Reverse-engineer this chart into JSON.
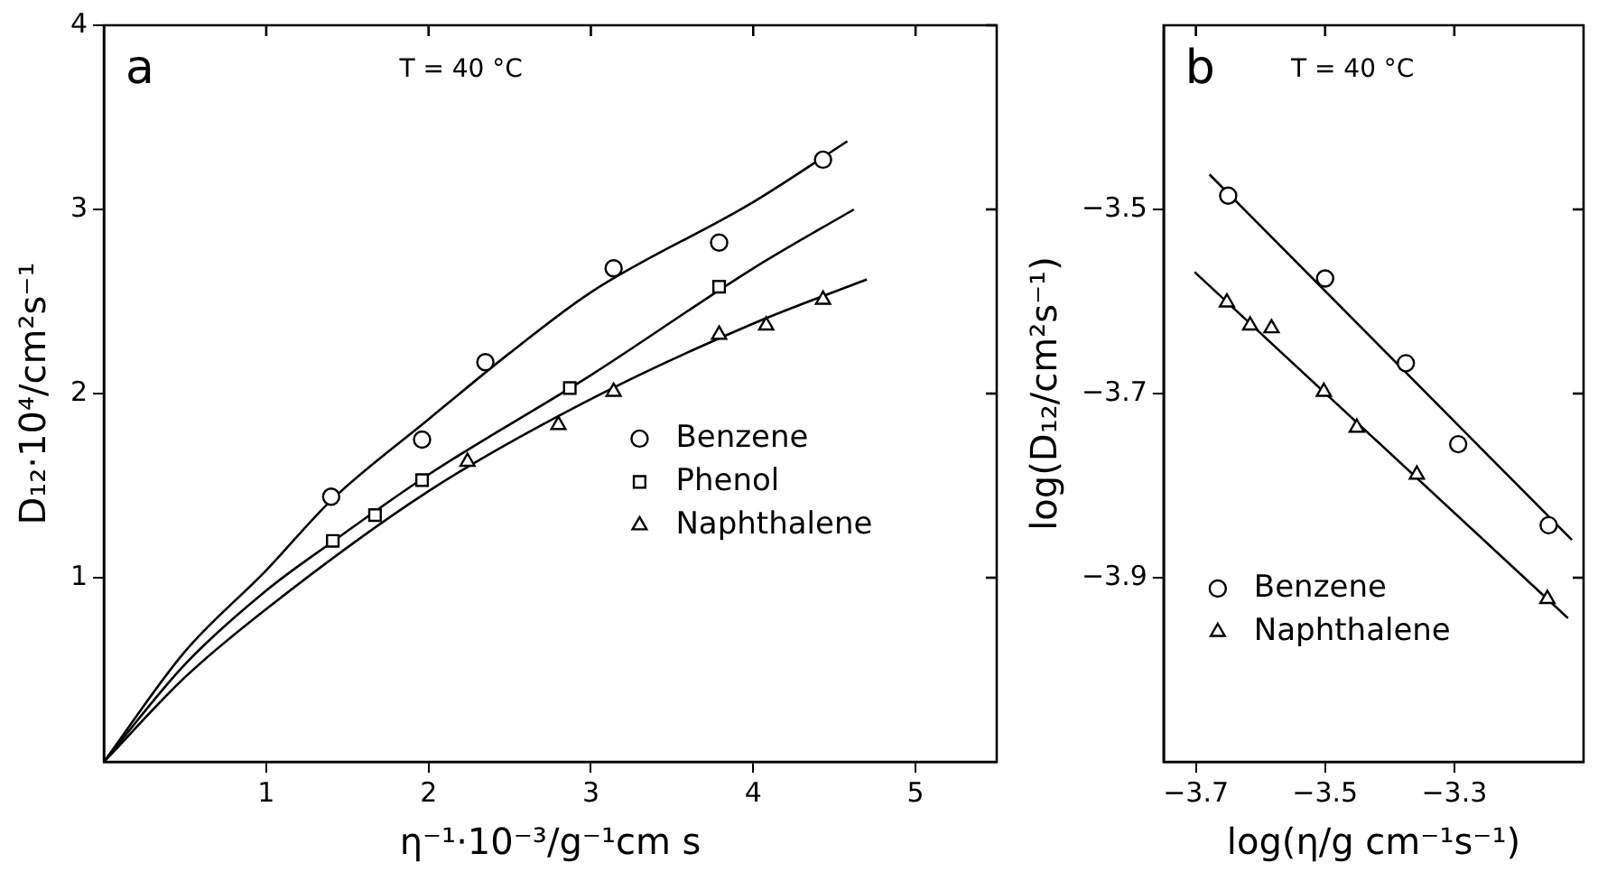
{
  "chart_data": [
    {
      "type": "scatter",
      "xlabel": "η⁻¹·10⁻³/g⁻¹cm s",
      "ylabel": "D₁₂·10⁴/cm²s⁻¹",
      "xlim": [
        0,
        5.5
      ],
      "ylim": [
        0,
        4
      ],
      "xticks": [
        1,
        2,
        3,
        4,
        5
      ],
      "yticks": [
        1,
        2,
        3,
        4
      ],
      "legend": "right",
      "annotations": [
        "a",
        "T = 40 °C"
      ],
      "series": [
        {
          "name": "Benzene",
          "color": "#000000",
          "marker": "circle",
          "x": [
            1.4,
            1.96,
            2.35,
            3.14,
            3.79,
            4.43
          ],
          "values": [
            1.44,
            1.75,
            2.17,
            2.68,
            2.82,
            3.27
          ]
        },
        {
          "name": "Phenol",
          "color": "#000000",
          "marker": "square",
          "x": [
            1.41,
            1.67,
            1.96,
            2.87,
            3.79
          ],
          "values": [
            1.2,
            1.34,
            1.53,
            2.03,
            2.58
          ]
        },
        {
          "name": "Naphthalene",
          "color": "#000000",
          "marker": "triangle",
          "x": [
            2.24,
            2.8,
            3.14,
            3.79,
            4.08,
            4.43
          ],
          "values": [
            1.63,
            1.83,
            2.01,
            2.32,
            2.37,
            2.51
          ]
        },
        {
          "type": "line",
          "color": "#000000",
          "marker": "none",
          "x": [
            0,
            0.5,
            1,
            1.4,
            2,
            2.5,
            3,
            4,
            4.58
          ],
          "values": [
            0,
            0.6,
            1.04,
            1.42,
            1.86,
            2.22,
            2.55,
            3.04,
            3.37
          ]
        },
        {
          "type": "line",
          "color": "#000000",
          "marker": "none",
          "x": [
            0,
            0.5,
            1,
            1.4,
            2,
            3,
            4,
            4.62
          ],
          "values": [
            0,
            0.53,
            0.93,
            1.19,
            1.56,
            2.1,
            2.68,
            3.0
          ]
        },
        {
          "type": "line",
          "color": "#000000",
          "marker": "none",
          "x": [
            0,
            0.5,
            1,
            2,
            3,
            4,
            4.7
          ],
          "values": [
            0,
            0.46,
            0.83,
            1.47,
            1.97,
            2.38,
            2.62
          ]
        }
      ]
    },
    {
      "type": "scatter",
      "xlabel": "log(η/g cm⁻¹s⁻¹)",
      "ylabel": "log(D₁₂/cm²s⁻¹)",
      "xlim": [
        -3.75,
        -3.1
      ],
      "ylim": [
        -4.1,
        -3.3
      ],
      "xticks": [
        -3.7,
        -3.5,
        -3.3
      ],
      "yticks": [
        -3.5,
        -3.7,
        -3.9
      ],
      "legend": "bottom left",
      "annotations": [
        "b",
        "T = 40 °C"
      ],
      "series": [
        {
          "name": "Benzene",
          "color": "#000000",
          "marker": "circle",
          "x": [
            -3.65,
            -3.5,
            -3.375,
            -3.294,
            -3.154
          ],
          "values": [
            -3.485,
            -3.575,
            -3.667,
            -3.755,
            -3.843
          ]
        },
        {
          "name": "Naphthalene",
          "color": "#000000",
          "marker": "triangle",
          "x": [
            -3.652,
            -3.616,
            -3.583,
            -3.502,
            -3.451,
            -3.358,
            -3.156
          ],
          "values": [
            -3.601,
            -3.626,
            -3.629,
            -3.698,
            -3.737,
            -3.788,
            -3.923
          ]
        },
        {
          "type": "line",
          "color": "#000000",
          "marker": "none",
          "x": [
            -3.679,
            -3.118
          ],
          "values": [
            -3.462,
            -3.859
          ]
        },
        {
          "type": "line",
          "color": "#000000",
          "marker": "none",
          "x": [
            -3.702,
            -3.124
          ],
          "values": [
            -3.568,
            -3.944
          ]
        }
      ]
    }
  ]
}
